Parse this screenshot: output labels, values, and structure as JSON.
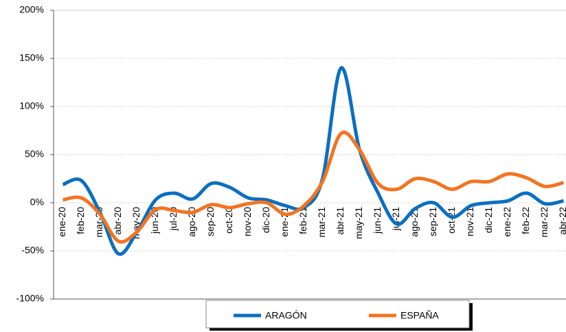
{
  "chart_data": {
    "type": "line",
    "categories": [
      "ene-20",
      "feb-20",
      "mar-20",
      "abr-20",
      "may-20",
      "jun-20",
      "jul-20",
      "ago-20",
      "sep-20",
      "oct-20",
      "nov-20",
      "dic-20",
      "ene-21",
      "feb-21",
      "mar-21",
      "abr-21",
      "may-21",
      "jun-21",
      "jul-21",
      "ago-21",
      "sep-21",
      "oct-21",
      "nov-21",
      "dic-21",
      "ene-22",
      "feb-22",
      "mar-22",
      "abr-22"
    ],
    "series": [
      {
        "name": "ARAGÓN",
        "color": "#0a6fc2",
        "values": [
          19,
          23,
          -10,
          -53,
          -30,
          3,
          10,
          4,
          20,
          16,
          5,
          3,
          -3,
          -5,
          25,
          140,
          55,
          10,
          -22,
          -6,
          0,
          -15,
          -3,
          0,
          2,
          10,
          -1,
          2
        ]
      },
      {
        "name": "ESPAÑA",
        "color": "#f4731f",
        "values": [
          3,
          5,
          -12,
          -40,
          -30,
          -7,
          -8,
          -10,
          -2,
          -5,
          -1,
          0,
          -12,
          -3,
          22,
          72,
          55,
          20,
          14,
          25,
          22,
          14,
          22,
          22,
          30,
          26,
          17,
          21
        ]
      }
    ],
    "ylim": [
      -100,
      200
    ],
    "yticks": [
      {
        "value": -100,
        "label": "-100%"
      },
      {
        "value": -50,
        "label": "-50%"
      },
      {
        "value": 0,
        "label": "0%"
      },
      {
        "value": 50,
        "label": "50%"
      },
      {
        "value": 100,
        "label": "100%"
      },
      {
        "value": 150,
        "label": "150%"
      },
      {
        "value": 200,
        "label": "200%"
      }
    ],
    "grid": true,
    "legend": "bottom"
  }
}
